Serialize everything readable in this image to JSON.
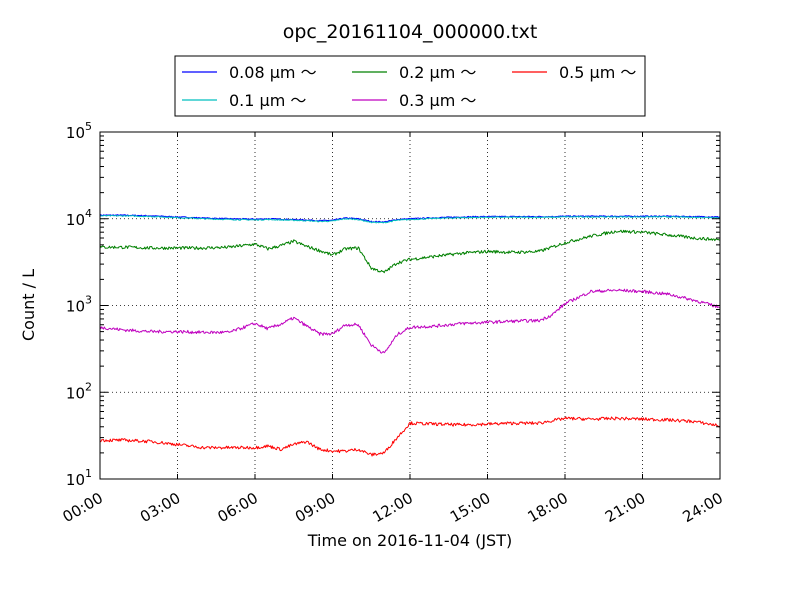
{
  "chart_data": {
    "type": "line",
    "title": "opc_20161104_000000.txt",
    "xlabel": "Time on 2016-11-04 (JST)",
    "ylabel": "Count / L",
    "xlim": [
      0,
      24
    ],
    "ylim": [
      10,
      100000
    ],
    "yscale": "log",
    "grid": true,
    "legend": {
      "placement": "top-center",
      "columns": 3
    },
    "x_ticks": [
      {
        "value": 0,
        "label": "00:00"
      },
      {
        "value": 3,
        "label": "03:00"
      },
      {
        "value": 6,
        "label": "06:00"
      },
      {
        "value": 9,
        "label": "09:00"
      },
      {
        "value": 12,
        "label": "12:00"
      },
      {
        "value": 15,
        "label": "15:00"
      },
      {
        "value": 18,
        "label": "18:00"
      },
      {
        "value": 21,
        "label": "21:00"
      },
      {
        "value": 24,
        "label": "24:00"
      }
    ],
    "y_ticks": [
      {
        "value": 10,
        "base": "10",
        "exp": "1"
      },
      {
        "value": 100,
        "base": "10",
        "exp": "2"
      },
      {
        "value": 1000,
        "base": "10",
        "exp": "3"
      },
      {
        "value": 10000,
        "base": "10",
        "exp": "4"
      },
      {
        "value": 100000,
        "base": "10",
        "exp": "5"
      }
    ],
    "x": [
      0,
      1,
      2,
      3,
      4,
      5,
      6,
      6.5,
      7,
      7.5,
      8,
      8.5,
      9,
      9.5,
      10,
      10.5,
      11,
      11.5,
      12,
      13,
      14,
      15,
      16,
      17,
      17.5,
      18,
      19,
      20,
      21,
      22,
      23,
      24
    ],
    "series": [
      {
        "name": "0.08 μm ～",
        "color": "#0000ff",
        "values": [
          11000,
          11000,
          10800,
          10500,
          10200,
          10000,
          9900,
          10000,
          9900,
          9800,
          9700,
          9500,
          9600,
          10200,
          10000,
          9300,
          9200,
          9800,
          10000,
          10300,
          10500,
          10600,
          10600,
          10600,
          10600,
          10700,
          10700,
          10700,
          10700,
          10700,
          10600,
          10500
        ]
      },
      {
        "name": "0.1 μm ～",
        "color": "#00bfbf",
        "values": [
          10800,
          10800,
          10600,
          10300,
          10000,
          9800,
          9700,
          9800,
          9700,
          9600,
          9500,
          9300,
          9400,
          10000,
          9800,
          9100,
          9000,
          9600,
          9800,
          10100,
          10300,
          10400,
          10400,
          10400,
          10400,
          10500,
          10500,
          10500,
          10500,
          10500,
          10400,
          10300
        ]
      },
      {
        "name": "0.2 μm ～",
        "color": "#008000",
        "values": [
          4700,
          4700,
          4600,
          4600,
          4600,
          4700,
          5100,
          4500,
          4900,
          5500,
          4800,
          4300,
          3800,
          4500,
          4600,
          2700,
          2400,
          3100,
          3400,
          3700,
          4000,
          4200,
          4100,
          4200,
          4700,
          5300,
          6300,
          7200,
          7000,
          6500,
          6000,
          5700
        ]
      },
      {
        "name": "0.3 μm ～",
        "color": "#bf00bf",
        "values": [
          560,
          520,
          500,
          500,
          490,
          490,
          620,
          540,
          610,
          720,
          580,
          470,
          470,
          600,
          600,
          350,
          280,
          460,
          560,
          580,
          620,
          640,
          660,
          670,
          780,
          1050,
          1450,
          1500,
          1450,
          1350,
          1150,
          950
        ]
      },
      {
        "name": "0.5 μm ～",
        "color": "#ff0000",
        "values": [
          28,
          28,
          27,
          25,
          23,
          23,
          23,
          24,
          22,
          25,
          27,
          22,
          21,
          21,
          22,
          19,
          20,
          30,
          44,
          43,
          42,
          43,
          44,
          44,
          47,
          50,
          49,
          50,
          49,
          48,
          46,
          41
        ]
      }
    ]
  }
}
